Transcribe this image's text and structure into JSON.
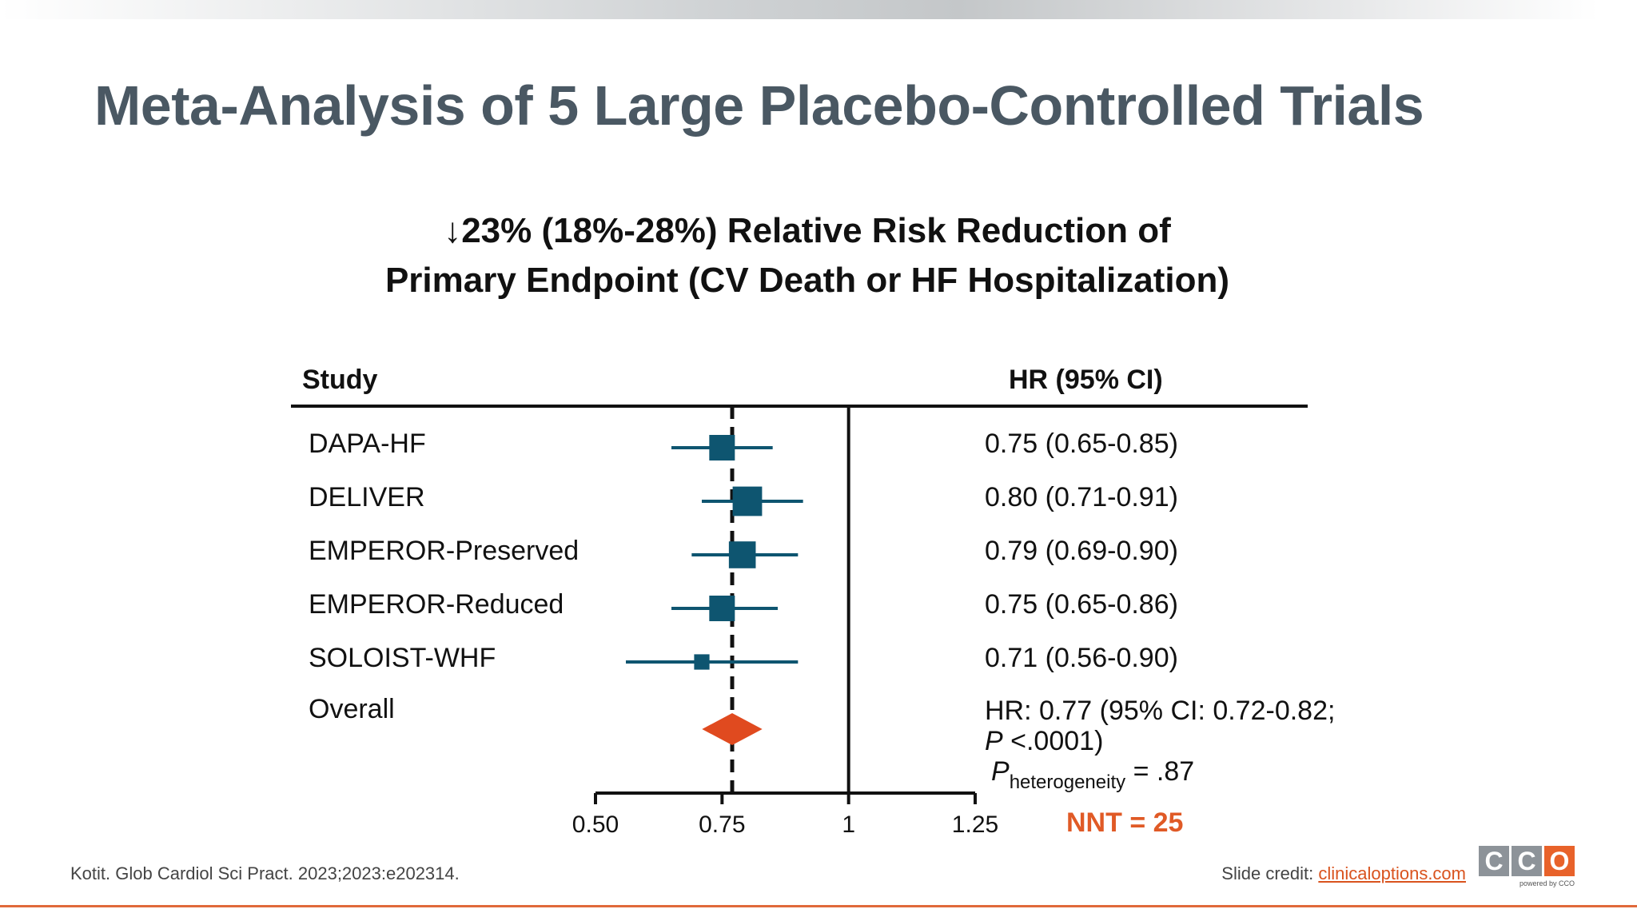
{
  "slide": {
    "title": "Meta-Analysis of 5 Large Placebo-Controlled Trials",
    "subtitle_line1": "↓23% (18%-28%) Relative Risk Reduction of",
    "subtitle_line2": "Primary Endpoint (CV Death or HF Hospitalization)",
    "citation": "Kotit. Glob Cardiol Sci Pract. 2023;2023:e202314.",
    "credit_prefix": "Slide credit: ",
    "credit_link": "clinicaloptions.com",
    "logo_letters": [
      "C",
      "C",
      "O"
    ],
    "logo_tagline": "powered by CCO"
  },
  "table": {
    "study_header": "Study",
    "hr_header": "HR (95% CI)"
  },
  "overall": {
    "label": "Overall",
    "line1": "HR: 0.77 (95% CI: 0.72-0.82;",
    "p_italic": "P",
    "line2_rest": " <.0001)",
    "phet_italic": "P",
    "phet_sub": "heterogeneity",
    "phet_value": " = .87",
    "nnt": "NNT = 25"
  },
  "colors": {
    "marker": "#0e5570",
    "overall_diamond": "#e04a1f",
    "title": "#4a5863",
    "accent": "#e05a26",
    "logo_gray": "#8d9399",
    "logo_orange": "#e8622a"
  },
  "chart_data": {
    "type": "forest",
    "x_axis": {
      "ticks": [
        0.5,
        0.75,
        1,
        1.25
      ],
      "tick_labels": [
        "0.50",
        "0.75",
        "1",
        "1.25"
      ],
      "range": [
        0.5,
        1.25
      ]
    },
    "reference_line": 1,
    "overall_line": 0.77,
    "studies": [
      {
        "name": "DAPA-HF",
        "hr": 0.75,
        "lo": 0.65,
        "hi": 0.85,
        "text": "0.75 (0.65-0.85)",
        "weight": 1.0
      },
      {
        "name": "DELIVER",
        "hr": 0.8,
        "lo": 0.71,
        "hi": 0.91,
        "text": "0.80 (0.71-0.91)",
        "weight": 1.15
      },
      {
        "name": "EMPEROR-Preserved",
        "hr": 0.79,
        "lo": 0.69,
        "hi": 0.9,
        "text": "0.79 (0.69-0.90)",
        "weight": 1.05
      },
      {
        "name": "EMPEROR-Reduced",
        "hr": 0.75,
        "lo": 0.65,
        "hi": 0.86,
        "text": "0.75 (0.65-0.86)",
        "weight": 1.0
      },
      {
        "name": "SOLOIST-WHF",
        "hr": 0.71,
        "lo": 0.56,
        "hi": 0.9,
        "text": "0.71 (0.56-0.90)",
        "weight": 0.6
      }
    ],
    "overall_estimate": {
      "hr": 0.77,
      "lo": 0.72,
      "hi": 0.82
    }
  }
}
